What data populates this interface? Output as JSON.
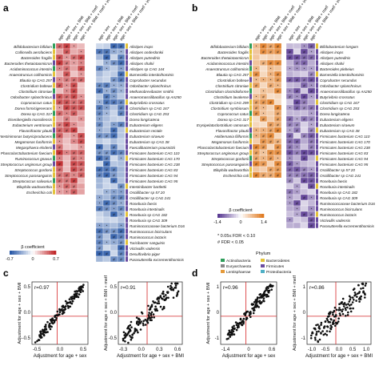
{
  "panels": {
    "a": "a",
    "b": "b",
    "c": "c",
    "d": "d"
  },
  "colors": {
    "red": "#c0282b",
    "blue": "#2b5aa8",
    "orange": "#e07b22",
    "purple": "#5a3b93",
    "green": "#2f9e5b",
    "yellow": "#e3c33a",
    "gray": "#8a8a8a"
  },
  "panel_a": {
    "columns": [
      "age + sex",
      "age + sex + BMI",
      "age + sex + BMI + metf",
      "age + sex + BMI + metf + insul"
    ],
    "left_taxa": [
      "Bifidobacterium bifidum",
      "Collinsella aerofaciens",
      "Bacteroides fragilis",
      "Bacteroides thetaiotaomicron",
      "Acidaminococcus intestini",
      "Anaerotruncus colihominis",
      "Blautia sp CAG 257",
      "Clostridium bolteae",
      "Clostridium citroniae",
      "Odoribacter splanchnicus",
      "Coprococcus catus",
      "Dorea formicigenerans",
      "Dorea sp CAG 317",
      "Eisenbergiella massiliensis",
      "Eubacterium ventriosum",
      "Flavonifractor plautii",
      "Intestinimonas butyriciproducens",
      "Megamonas funiformis",
      "Megasphaera elsdenii",
      "Phascolarctobacterium faecium",
      "Ruminococcus gnavus",
      "Streptococcus anginosus group",
      "Streptococcus gordonii",
      "Streptococcus parasanguinis",
      "Streptococcus salivarius",
      "Bilophila wadsworthia",
      "Escherichia coli"
    ],
    "right_taxa": [
      "Alistipes inops",
      "Alistipes onderdonkii",
      "Alistipes putredinis",
      "Alistipes shahii",
      "Alistipes sp CAG 144",
      "Barnesiella intestinihominis",
      "Coprobacter secundus",
      "Odoribacter splanchnicus",
      "Methanobrevibacter smithii",
      "Anaeromassilibacillus sp An250",
      "Butyrivibrio crossotus",
      "Clostridium sp CAG 167",
      "Clostridium sp CAG 253",
      "Dorea longicatena",
      "Eubacterium eligens",
      "Eubacterium rectale",
      "Eubacterium siraeum",
      "Eubacterium sp CAG 38",
      "Faecalibacterium prausnitzii",
      "Firmicutes bacterium CAG 110",
      "Firmicutes bacterium CAG 170",
      "Firmicutes bacterium CAG 238",
      "Firmicutes bacterium CAG 83",
      "Firmicutes bacterium CAG 94",
      "Firmicutes bacterium CAG 95",
      "Intestinibacter bartlettii",
      "Oscillibacter sp 57 20",
      "Oscillibacter sp CAG 241",
      "Roseburia faecis",
      "Roseburia intestinalis",
      "Roseburia sp CAG 182",
      "Roseburia sp CAG 309",
      "Ruminococcaceae bacterium D16",
      "Ruminococcus bicirculans",
      "Ruminococcus lactaris",
      "Turicibacter sanguinis",
      "Victivallis vadensis",
      "Desulfovibrio piger",
      "Parasutterella excrementihominis"
    ],
    "legend_title": "β coefficient",
    "legend_ticks": [
      "-0.7",
      "0",
      "0.7"
    ]
  },
  "panel_b": {
    "columns": [
      "age + sex",
      "age + sex + BMI",
      "age + sex + BMI + metf",
      "age + sex + BMI + metf + insul"
    ],
    "left_taxa": [
      "Bifidobacterium bifidum",
      "Bacteroides fragilis",
      "Bacteroides thetaiotaomicron",
      "Acidaminococcus intestini",
      "Anaerotruncus colihominis",
      "Blautia sp CAG 257",
      "Clostridium bolteae",
      "Clostridium citroniae",
      "Clostridium clostridioforme",
      "Clostridium lavalense",
      "Clostridium sp CAG 299",
      "Clostridium symbiosum",
      "Coprococcus catus",
      "Dorea sp CAG 317",
      "Erysipelatoclostridium ramosum",
      "Flavonifractor plautii",
      "Holdemania filiformis",
      "Megamonas funiformis",
      "Phascolarctobacterium faecium",
      "Streptococcus anginosus group",
      "Streptococcus gordonii",
      "Streptococcus parasanguinis",
      "Bilophila wadsworthia",
      "Escherichia coli"
    ],
    "right_taxa": [
      "Bifidobacterium longum",
      "Alistipes inops",
      "Alistipes putredinis",
      "Alistipes shahii",
      "Bacteroides plebeius",
      "Barnesiella intestinihominis",
      "Coprobacter secundus",
      "Odoribacter splanchnicus",
      "Anaeromassilibacillus sp An250",
      "Butyrivibrio crossotus",
      "Clostridium sp CAG 167",
      "Clostridium sp CAG 253",
      "Dorea longicatena",
      "Eubacterium eligens",
      "Eubacterium siraeum",
      "Eubacterium sp CAG 38",
      "Firmicutes bacterium CAG 110",
      "Firmicutes bacterium CAG 170",
      "Firmicutes bacterium CAG 238",
      "Firmicutes bacterium CAG 83",
      "Firmicutes bacterium CAG 94",
      "Firmicutes bacterium CAG 95",
      "Oscillibacter sp 57 20",
      "Oscillibacter sp CAG 241",
      "Roseburia faecis",
      "Roseburia intestinalis",
      "Roseburia sp CAG 182",
      "Roseburia sp CAG 309",
      "Ruminococcaceae bacterium D16",
      "Ruminococcus bicirculans",
      "Ruminococcus lactaris",
      "Victivallis vadensis",
      "Parasutterella excrementihominis"
    ],
    "legend_title": "β coefficient",
    "legend_ticks": [
      "-1.4",
      "0",
      "1.4"
    ],
    "significance_note": [
      "* 0.05≤ FDR < 0.10",
      "# FDR < 0.05"
    ],
    "phylum_title": "Phylum",
    "phyla": [
      {
        "name": "Actinobacteria",
        "color": "#2f9e5b"
      },
      {
        "name": "Bacteroidetes",
        "color": "#e3c33a"
      },
      {
        "name": "Euryarchaeota",
        "color": "#8a8a8a"
      },
      {
        "name": "Firmicutes",
        "color": "#6a4ca0"
      },
      {
        "name": "Lentisphaerae",
        "color": "#e59a3a"
      },
      {
        "name": "Proteobacteria",
        "color": "#4fb0c6"
      }
    ]
  },
  "panel_c": {
    "left": {
      "r": "r=0.97",
      "xlabel": "Adjustment for age + sex",
      "ylabel": "Adjustment for age + sex + BMI",
      "xticks": [
        "-0.5",
        "0.0",
        "0.5"
      ],
      "yticks": [
        "0.5",
        "0.0",
        "-0.5"
      ]
    },
    "right": {
      "r": "r=0.91",
      "xlabel": "Adjustment for age + sex + BMI",
      "ylabel": "Adjustment for age + sex + BMI + metf",
      "xticks": [
        "-0.3",
        "0.0",
        "0.3",
        "0.6"
      ],
      "yticks": [
        "0.5",
        "0.0",
        "-0.5"
      ]
    }
  },
  "panel_d": {
    "left": {
      "r": "r=0.96",
      "xlabel": "Adjustment for age + sex",
      "ylabel": "Adjustment for age + sex + BMI",
      "xticks": [
        "-1.4",
        "0",
        "0.6"
      ],
      "yticks": [
        "1",
        "0",
        "-1"
      ]
    },
    "right": {
      "r": "r=0.86",
      "xlabel": "Adjustment for age + sex + BMI",
      "ylabel": "Adjustment for age + sex + BMI + metf",
      "xticks": [
        "-1.0",
        "-0.5",
        "0.0",
        "0.5",
        "1.0"
      ],
      "yticks": [
        "1",
        "0",
        "-1"
      ]
    }
  }
}
